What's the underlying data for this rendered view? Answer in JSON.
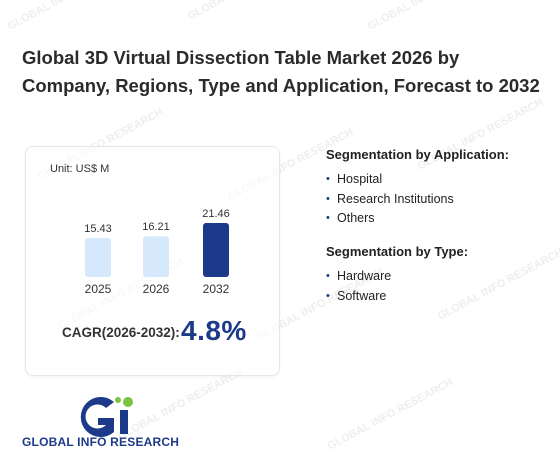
{
  "title": "Global 3D Virtual Dissection Table Market 2026 by Company, Regions, Type and Application, Forecast to 2032",
  "watermark_text": "GLOBAL INFO RESEARCH",
  "chart_data": {
    "type": "bar",
    "unit": "Unit: US$ M",
    "categories": [
      "2025",
      "2026",
      "2032"
    ],
    "values": [
      15.43,
      16.21,
      21.46
    ],
    "value_labels": [
      "15.43",
      "16.21",
      "21.46"
    ],
    "bar_colors": [
      "#d6e8fb",
      "#d6e8fb",
      "#1d3a8a"
    ],
    "ylim": [
      0,
      21.46
    ]
  },
  "cagr": {
    "label": "CAGR(2026-2032):",
    "value": "4.8%"
  },
  "segments": {
    "application": {
      "title": "Segmentation by Application:",
      "items": [
        "Hospital",
        "Research Institutions",
        "Others"
      ]
    },
    "type": {
      "title": "Segmentation by Type:",
      "items": [
        "Hardware",
        "Software"
      ]
    }
  },
  "logo": {
    "text": "GLOBAL INFO RESEARCH",
    "colors": {
      "blue": "#1d3a8a",
      "green": "#7cc242"
    }
  }
}
